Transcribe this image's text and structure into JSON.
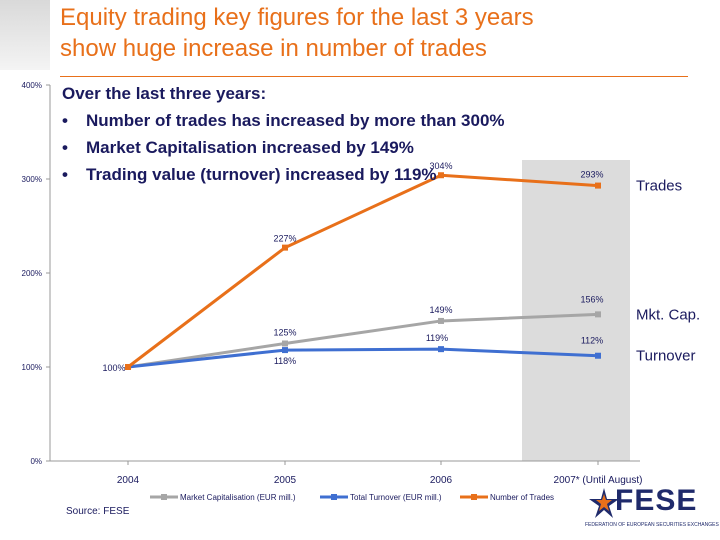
{
  "slide": {
    "title_line1": "Equity trading key figures for the last 3 years",
    "title_line2": "show huge increase in number of trades",
    "bullets_header": "Over the last three years:",
    "bullets": [
      {
        "text": "Number of trades has increased by more than 300%"
      },
      {
        "text": "Market Capitalisation increased by 149%"
      },
      {
        "text": "Trading value (turnover) increased by 119%"
      }
    ],
    "bullet_char": "•",
    "source": "Source: FESE",
    "logo_text": "FESE",
    "logo_tagline": "FEDERATION OF EUROPEAN SECURITIES EXCHANGES",
    "colors": {
      "title": "#e8701a",
      "text": "#1a1a5e",
      "highlight": "#dcdcdc",
      "logo": "#1f2a6b"
    }
  },
  "chart_data": {
    "type": "line",
    "categories": [
      "2004",
      "2005",
      "2006",
      "2007* (Until August)"
    ],
    "highlighted_category": "2007* (Until August)",
    "yticks": [
      "0%",
      "100%",
      "200%",
      "300%",
      "400%"
    ],
    "ylim": [
      0,
      400
    ],
    "grid": false,
    "legend_position": "bottom",
    "series": [
      {
        "name": "Market Capitalisation (EUR mill.)",
        "side_label": "Mkt. Cap.",
        "color": "#a6a6a6",
        "values": [
          100,
          125,
          149,
          156
        ],
        "labels": [
          "",
          "125%",
          "149%",
          "156%"
        ]
      },
      {
        "name": "Total Turnover (EUR mill.)",
        "side_label": "Turnover",
        "color": "#3f6fd1",
        "values": [
          100,
          118,
          119,
          112
        ],
        "labels": [
          "100%",
          "118%",
          "119%",
          "112%"
        ]
      },
      {
        "name": "Number of Trades",
        "side_label": "Trades",
        "color": "#e8701a",
        "values": [
          100,
          227,
          304,
          293
        ],
        "labels": [
          "",
          "227%",
          "304%",
          "293%"
        ]
      }
    ]
  }
}
